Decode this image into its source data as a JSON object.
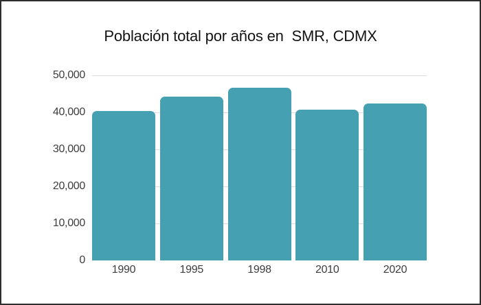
{
  "window": {
    "background_color": "#ffffff",
    "border_color": "#2e2e2e"
  },
  "chart_data": {
    "type": "bar",
    "title": "Población total por años en  SMR, CDMX",
    "categories": [
      "1990",
      "1995",
      "1998",
      "2010",
      "2020"
    ],
    "values": [
      40300,
      44300,
      46600,
      40700,
      42400
    ],
    "xlabel": "",
    "ylabel": "",
    "ylim": [
      0,
      50000
    ],
    "ytick_interval": 10000,
    "yticks": [
      0,
      10000,
      20000,
      30000,
      40000,
      50000
    ],
    "ytick_labels": [
      "0",
      "10,000",
      "20,000",
      "30,000",
      "40,000",
      "50,000"
    ],
    "grid": "horizontal",
    "legend": "none",
    "bar_color": "#45a0b1",
    "gridline_color": "#dadada",
    "axis_label_color": "#3d3d3d",
    "title_color": "#141414"
  }
}
